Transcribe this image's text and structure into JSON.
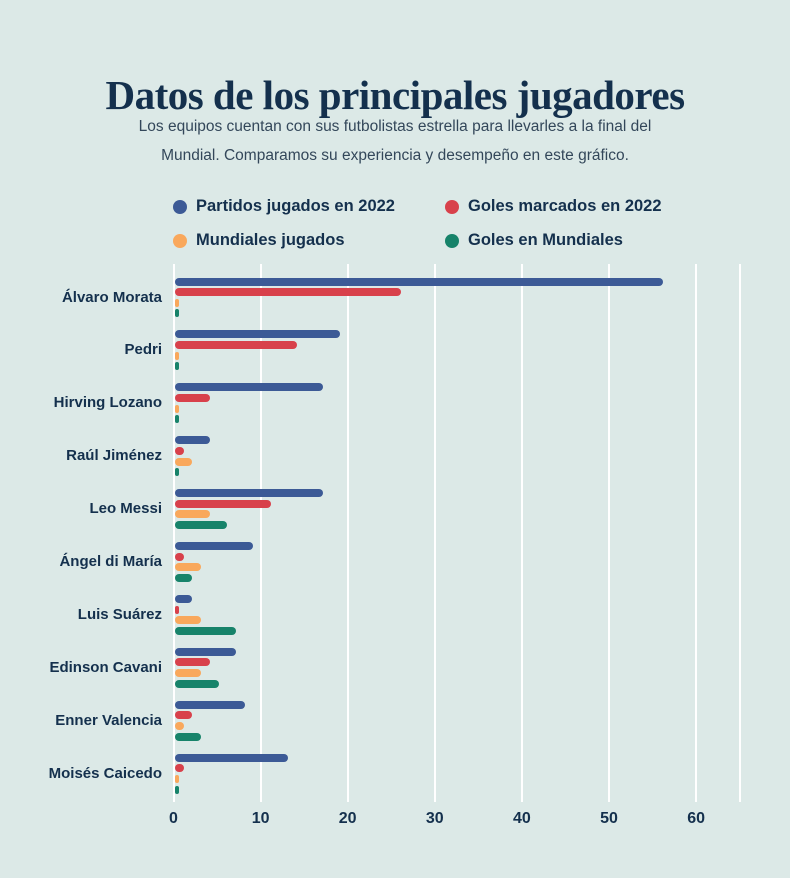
{
  "page": {
    "background_color": "#dce9e7",
    "text_color": "#14304d"
  },
  "header": {
    "title": "Datos de los principales jugadores",
    "subtitle_lines": [
      "Los equipos cuentan con sus futbolistas estrella para llevarles a la final del",
      "Mundial. Comparamos su experiencia y desempeño en este gráfico."
    ]
  },
  "legend": {
    "items": [
      {
        "label": "Partidos jugados en 2022",
        "color": "#3c5a96",
        "icon": "circle-dot-icon"
      },
      {
        "label": "Goles marcados en 2022",
        "color": "#d8414b",
        "icon": "circle-dot-icon"
      },
      {
        "label": "Mundiales jugados",
        "color": "#f9a85c",
        "icon": "circle-dot-icon"
      },
      {
        "label": "Goles en Mundiales",
        "color": "#17836a",
        "icon": "circle-dot-icon"
      }
    ]
  },
  "chart_data": {
    "type": "bar",
    "orientation": "horizontal",
    "title": "Datos de los principales jugadores",
    "xlabel": "",
    "ylabel": "",
    "xlim": [
      0,
      60
    ],
    "xticks": [
      0,
      10,
      20,
      30,
      40,
      50,
      60
    ],
    "grid": true,
    "gridline_color": "#ffffff",
    "legend_position": "top",
    "categories": [
      "Álvaro Morata",
      "Pedri",
      "Hirving Lozano",
      "Raúl Jiménez",
      "Leo Messi",
      "Ángel di María",
      "Luis Suárez",
      "Edinson Cavani",
      "Enner Valencia",
      "Moisés Caicedo"
    ],
    "series": [
      {
        "name": "Partidos jugados en 2022",
        "key": "partidos-2022",
        "color": "#3c5a96",
        "values": [
          56,
          19,
          17,
          4,
          17,
          9,
          2,
          7,
          8,
          13
        ]
      },
      {
        "name": "Goles marcados en 2022",
        "key": "goles-2022",
        "color": "#d8414b",
        "values": [
          26,
          14,
          4,
          1,
          11,
          1,
          0,
          4,
          2,
          1
        ]
      },
      {
        "name": "Mundiales jugados",
        "key": "mundiales-jugados",
        "color": "#f9a85c",
        "values": [
          0,
          0,
          0,
          2,
          4,
          3,
          3,
          3,
          1,
          0
        ]
      },
      {
        "name": "Goles en Mundiales",
        "key": "goles-mundiales",
        "color": "#17836a",
        "values": [
          0,
          0,
          0,
          0,
          6,
          2,
          7,
          5,
          3,
          0
        ]
      }
    ]
  }
}
